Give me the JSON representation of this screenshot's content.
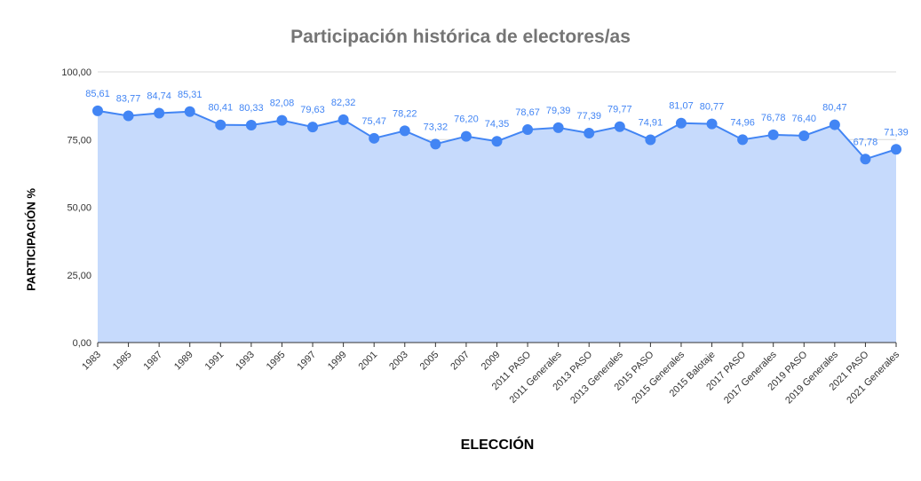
{
  "chart_data": {
    "type": "area",
    "title": "Participación histórica de electores/as",
    "xlabel": "ELECCIÓN",
    "ylabel": "PARTICIPACIÓN %",
    "ylim": [
      0,
      100
    ],
    "yticks": [
      "0,00",
      "25,00",
      "50,00",
      "75,00",
      "100,00"
    ],
    "ytick_values": [
      0,
      25,
      50,
      75,
      100
    ],
    "grid": true,
    "legend": "none",
    "categories": [
      "1983",
      "1985",
      "1987",
      "1989",
      "1991",
      "1993",
      "1995",
      "1997",
      "1999",
      "2001",
      "2003",
      "2005",
      "2007",
      "2009",
      "2011 PASO",
      "2011 Generales",
      "2013 PASO",
      "2013 Generales",
      "2015 PASO",
      "2015 Generales",
      "2015 Balotaje",
      "2017 PASO",
      "2017 Generales",
      "2019 PASO",
      "2019 Generales",
      "2021 PASO",
      "2021 Generales"
    ],
    "values": [
      85.61,
      83.77,
      84.74,
      85.31,
      80.41,
      80.33,
      82.08,
      79.63,
      82.32,
      75.47,
      78.22,
      73.32,
      76.2,
      74.35,
      78.67,
      79.39,
      77.39,
      79.77,
      74.91,
      81.07,
      80.77,
      74.96,
      76.78,
      76.4,
      80.47,
      67.78,
      71.39
    ],
    "value_labels": [
      "85,61",
      "83,77",
      "84,74",
      "85,31",
      "80,41",
      "80,33",
      "82,08",
      "79,63",
      "82,32",
      "75,47",
      "78,22",
      "73,32",
      "76,20",
      "74,35",
      "78,67",
      "79,39",
      "77,39",
      "79,77",
      "74,91",
      "81,07",
      "80,77",
      "74,96",
      "76,78",
      "76,40",
      "80,47",
      "67,78",
      "71,39"
    ],
    "colors": {
      "line": "#4285f4",
      "fill": "#c6dafc",
      "label": "#4285f4",
      "title": "#757575",
      "grid": "#d9d9d9"
    }
  }
}
